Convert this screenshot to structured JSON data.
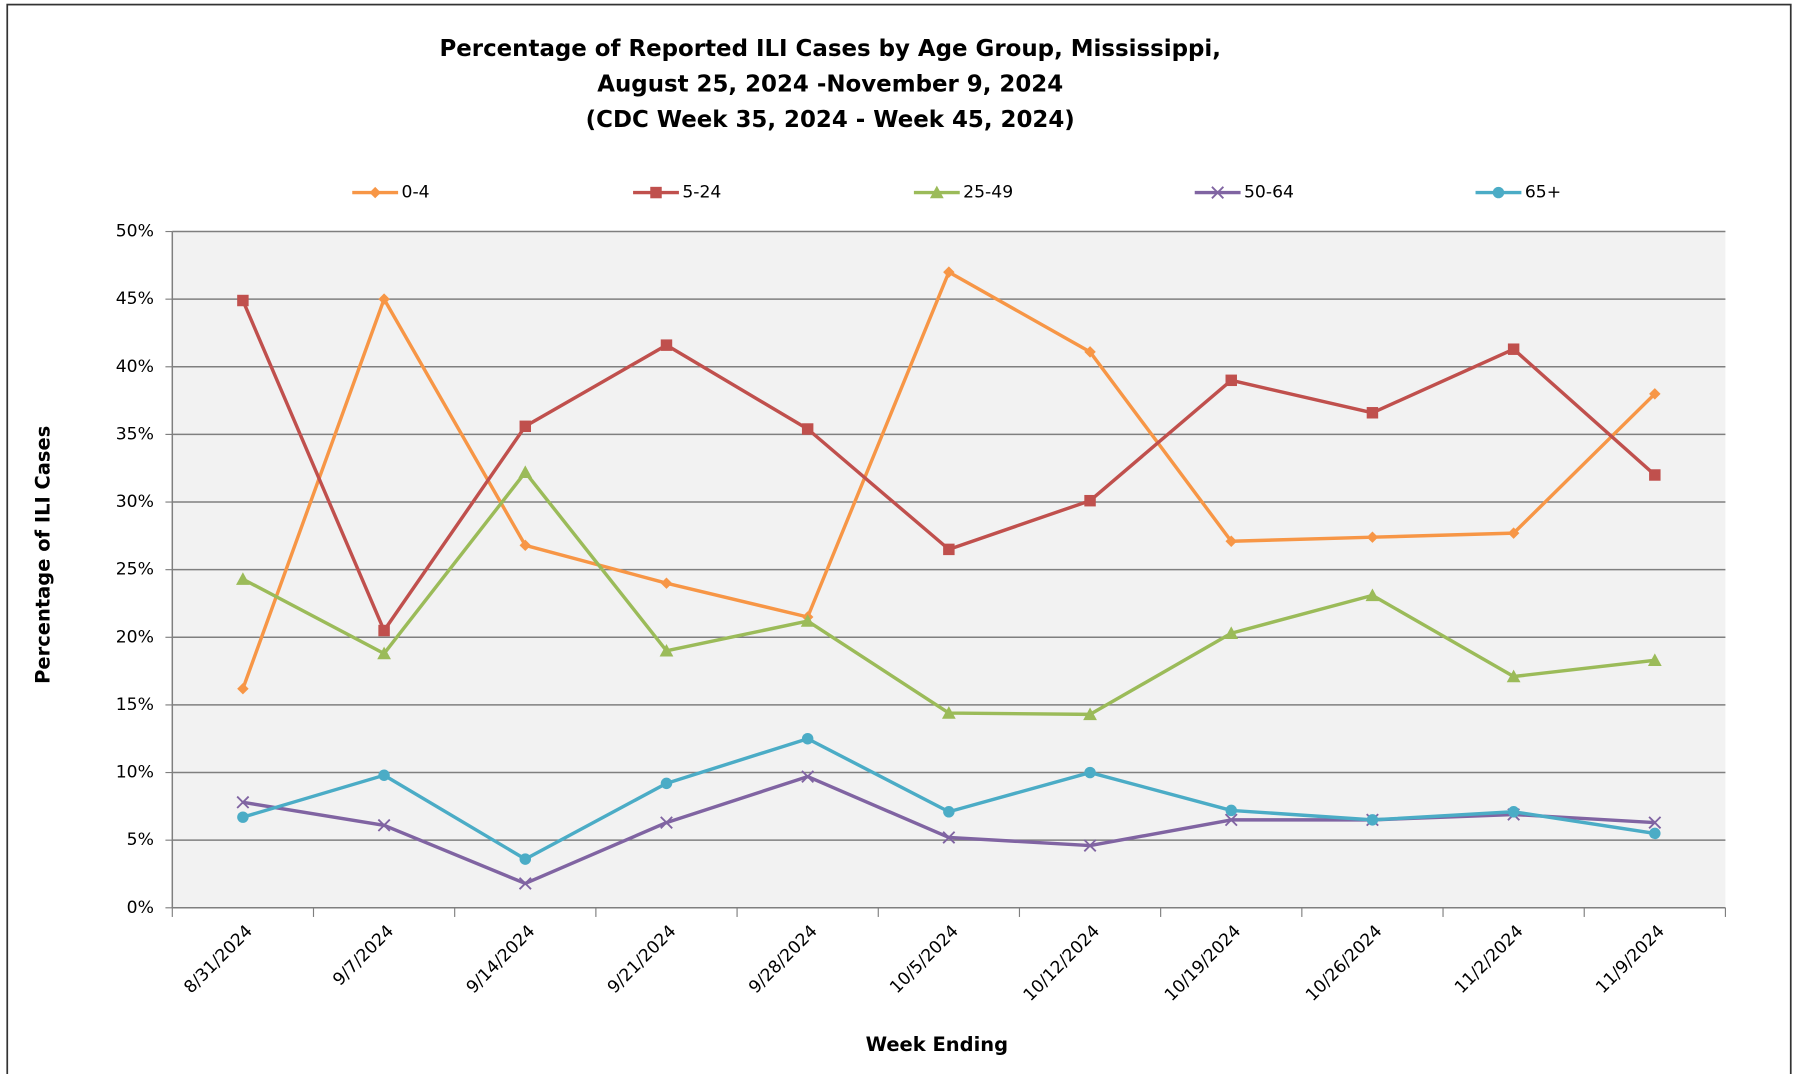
{
  "chart_data": {
    "type": "line",
    "title": [
      "Percentage of Reported ILI Cases by Age Group, Mississippi,",
      "August 25, 2024  -November 9, 2024",
      "(CDC Week 35, 2024  - Week 45, 2024)"
    ],
    "x_label": "Week Ending",
    "y_label": "Percentage of ILI Cases",
    "categories": [
      "8/31/2024",
      "9/7/2024",
      "9/14/2024",
      "9/21/2024",
      "9/28/2024",
      "10/5/2024",
      "10/12/2024",
      "10/19/2024",
      "10/26/2024",
      "11/2/2024",
      "11/9/2024"
    ],
    "series": [
      {
        "name": "0-4",
        "color": "#f79646",
        "marker": "diamond",
        "values": [
          16.2,
          45,
          26.8,
          24,
          21.5,
          47,
          41.1,
          27.1,
          27.4,
          27.7,
          38
        ]
      },
      {
        "name": "5-24",
        "color": "#c0504d",
        "marker": "square",
        "values": [
          44.9,
          20.5,
          35.6,
          41.6,
          35.4,
          26.5,
          30.1,
          39,
          36.6,
          41.3,
          32
        ]
      },
      {
        "name": "25-49",
        "color": "#9bbb59",
        "marker": "triangle",
        "values": [
          24.3,
          18.8,
          32.2,
          19,
          21.2,
          14.4,
          14.3,
          20.3,
          23.1,
          17.1,
          18.3
        ]
      },
      {
        "name": "50-64",
        "color": "#8064a2",
        "marker": "x",
        "values": [
          7.8,
          6.1,
          1.8,
          6.3,
          9.7,
          5.2,
          4.6,
          6.5,
          6.5,
          6.9,
          6.3
        ]
      },
      {
        "name": "65+",
        "color": "#4bacc6",
        "marker": "circle",
        "values": [
          6.7,
          9.8,
          3.6,
          9.2,
          12.5,
          7.1,
          10,
          7.2,
          6.5,
          7.1,
          5.5
        ]
      }
    ],
    "ylim": [
      0,
      50
    ],
    "yticks": [
      {
        "value": 0,
        "label": "0%"
      },
      {
        "value": 5,
        "label": "5%"
      },
      {
        "value": 10,
        "label": "10%"
      },
      {
        "value": 15,
        "label": "15%"
      },
      {
        "value": 20,
        "label": "20%"
      },
      {
        "value": 25,
        "label": "25%"
      },
      {
        "value": 30,
        "label": "30%"
      },
      {
        "value": 35,
        "label": "35%"
      },
      {
        "value": 40,
        "label": "40%"
      },
      {
        "value": 45,
        "label": "45%"
      },
      {
        "value": 50,
        "label": "50%"
      }
    ],
    "grid": true,
    "legend": "top"
  }
}
